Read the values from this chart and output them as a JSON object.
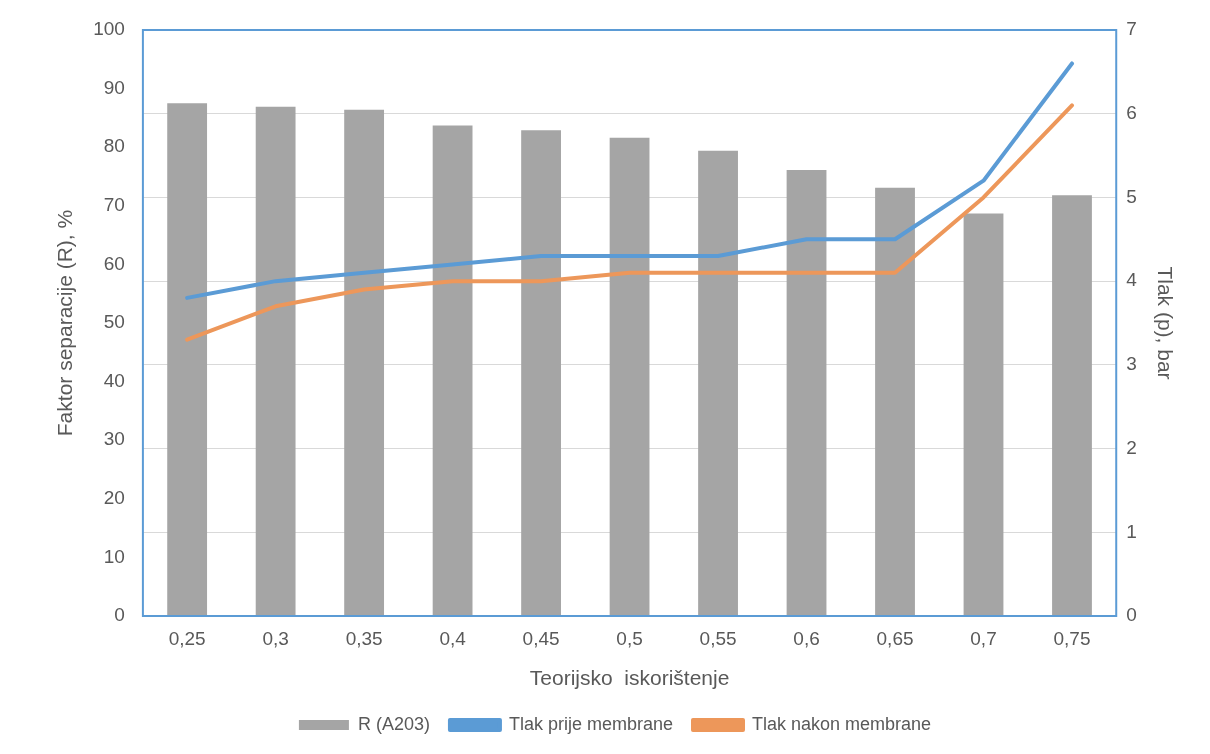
{
  "chart_data": {
    "type": "bar",
    "xlabel": "Teorijsko  iskorištenje",
    "ylabel": "Faktor separacije (R), %",
    "y2label": "Tlak (p), bar",
    "categories": [
      "0,25",
      "0,3",
      "0,35",
      "0,4",
      "0,45",
      "0,5",
      "0,55",
      "0,6",
      "0,65",
      "0,7",
      "0,75"
    ],
    "series": [
      {
        "name": "R (A203)",
        "color": "#a5a5a5",
        "values": [
          87.5,
          86.9,
          86.4,
          83.7,
          82.9,
          81.6,
          79.4,
          76.1,
          73.1,
          68.7,
          71.8
        ]
      },
      {
        "name": "Tlak prije membrane",
        "type": "line",
        "axis": "y2",
        "color": "#5b9bd5",
        "values": [
          3.8,
          4.0,
          4.1,
          4.2,
          4.3,
          4.3,
          4.3,
          4.5,
          4.5,
          5.2,
          6.6
        ]
      },
      {
        "name": "Tlak nakon membrane",
        "type": "line",
        "axis": "y2",
        "color": "#ed975a",
        "values": [
          3.3,
          3.7,
          3.9,
          4.0,
          4.0,
          4.1,
          4.1,
          4.1,
          4.1,
          5.0,
          6.1
        ]
      }
    ],
    "ylim": [
      0,
      100
    ],
    "yticks": [
      0,
      10,
      20,
      30,
      40,
      50,
      60,
      70,
      80,
      90,
      100
    ],
    "y2lim": [
      0,
      7
    ],
    "y2ticks": [
      0,
      1,
      2,
      3,
      4,
      5,
      6,
      7
    ],
    "grid": "y",
    "legend": "bottom",
    "marker": "none",
    "line_style": "solid"
  }
}
